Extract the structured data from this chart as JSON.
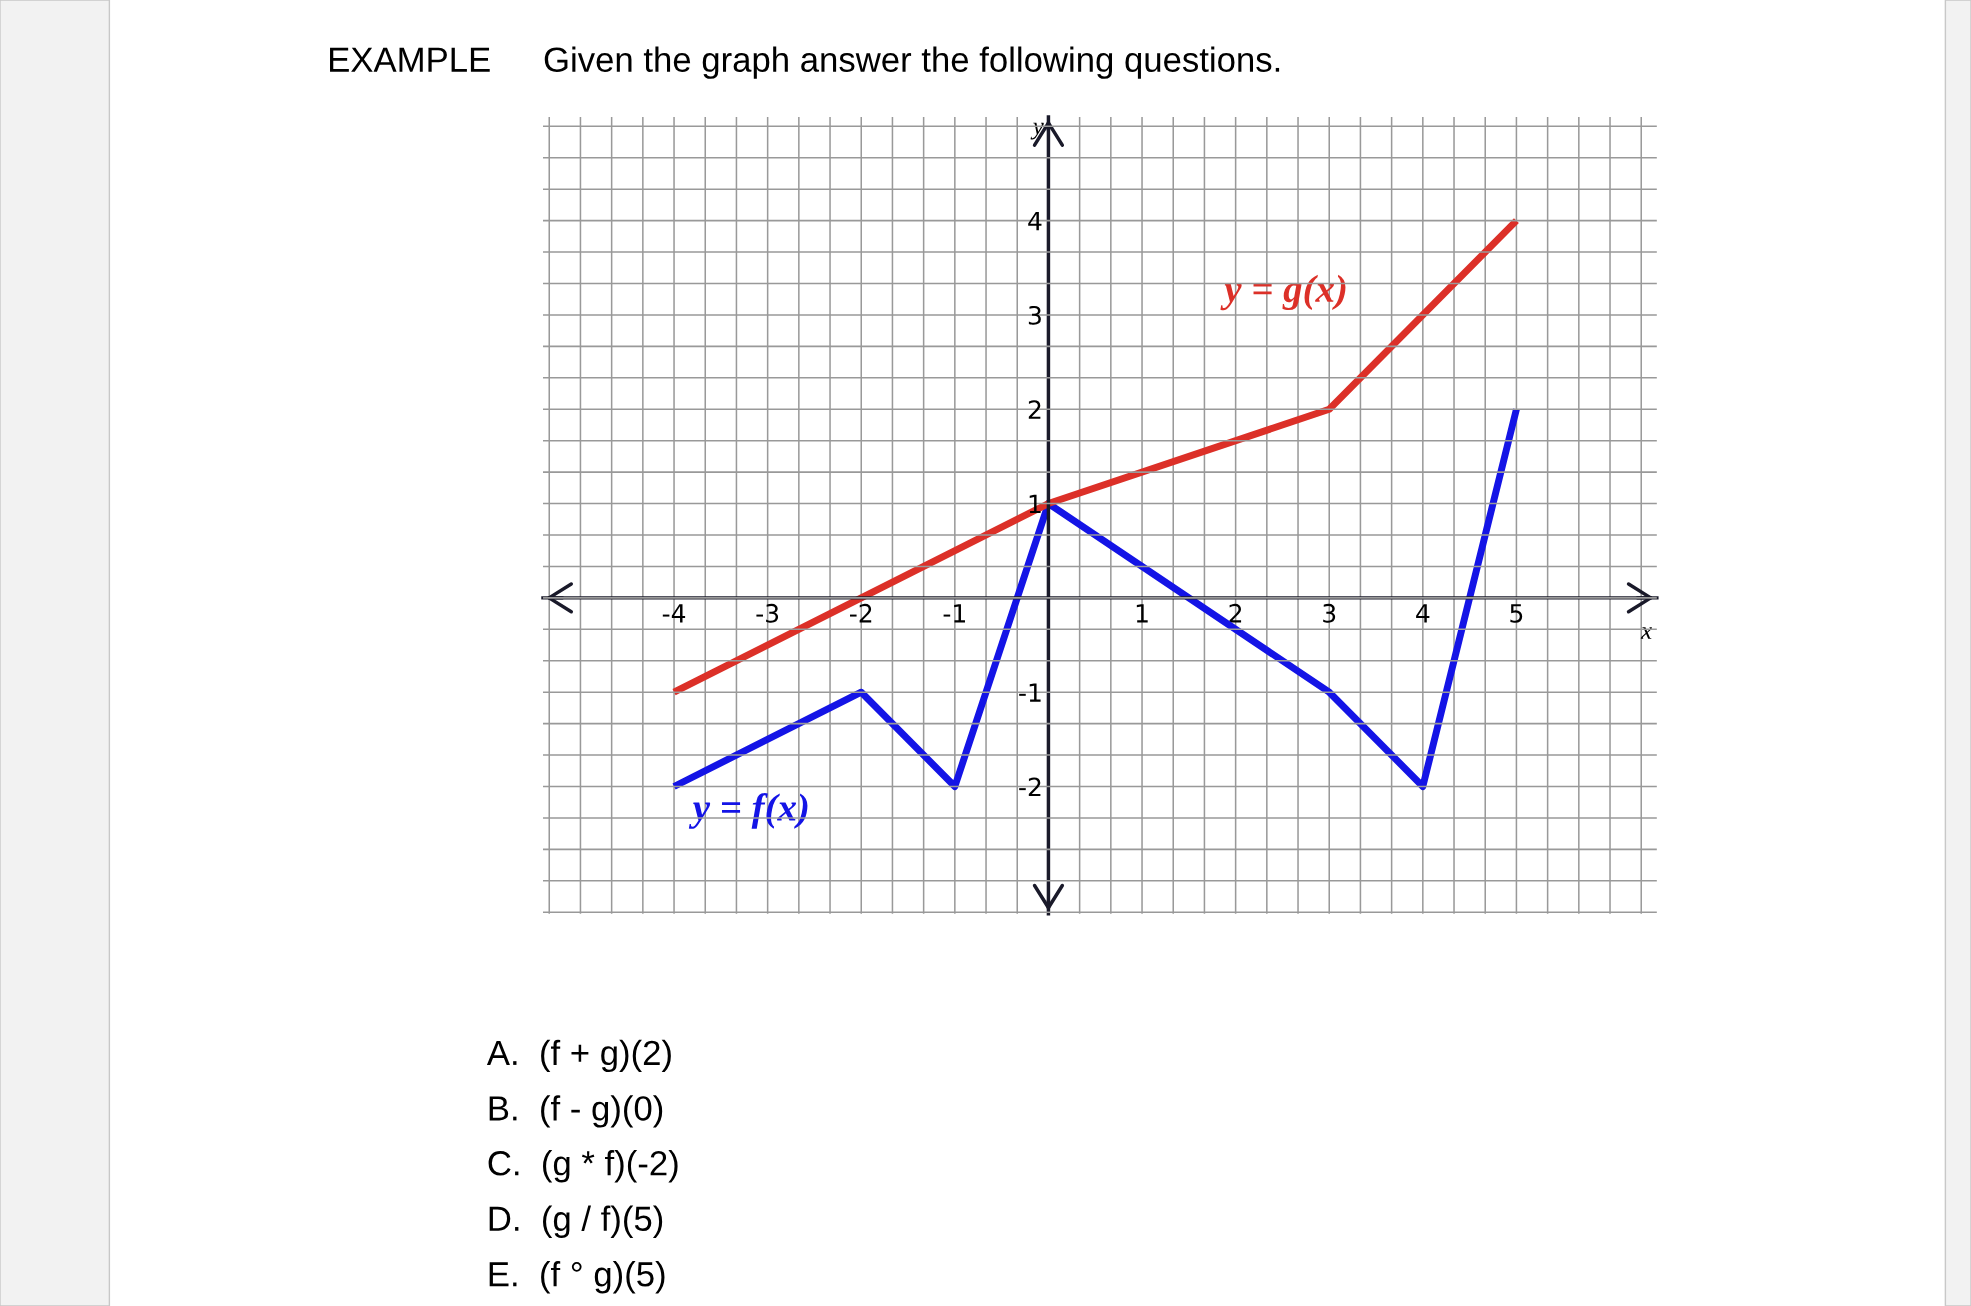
{
  "chart_data": {
    "type": "line",
    "title": "EXAMPLE",
    "subtitle": "Given the graph answer the following questions.",
    "xlabel": "x",
    "ylabel": "y",
    "series": [
      {
        "name": "y = f(x)",
        "color": "#1414e6",
        "x": [
          -4,
          -2,
          -1,
          0,
          3,
          4,
          5
        ],
        "values": [
          -2,
          -1,
          -2,
          1,
          -1,
          -2,
          2
        ]
      },
      {
        "name": "y = g(x)",
        "color": "#dc3028",
        "x": [
          -4,
          -2,
          0,
          3,
          5
        ],
        "values": [
          -1,
          0,
          1,
          2,
          4
        ]
      }
    ],
    "xlim": [
      -5.4,
      6.5
    ],
    "ylim": [
      -3.35,
      5.1
    ],
    "xticks": [
      -4,
      -3,
      -2,
      -1,
      1,
      2,
      3,
      4,
      5
    ],
    "yticks": [
      -2,
      -1,
      1,
      2,
      3,
      4
    ],
    "grid": true,
    "legend": false,
    "marker": "none",
    "line_style": "solid",
    "annotations": [
      "A.  (f + g)(2)",
      "B.  (f - g)(0)",
      "C.  (g * f)(-2)",
      "D.  (g / f)(5)",
      "E.  (f ° g)(5)"
    ]
  }
}
